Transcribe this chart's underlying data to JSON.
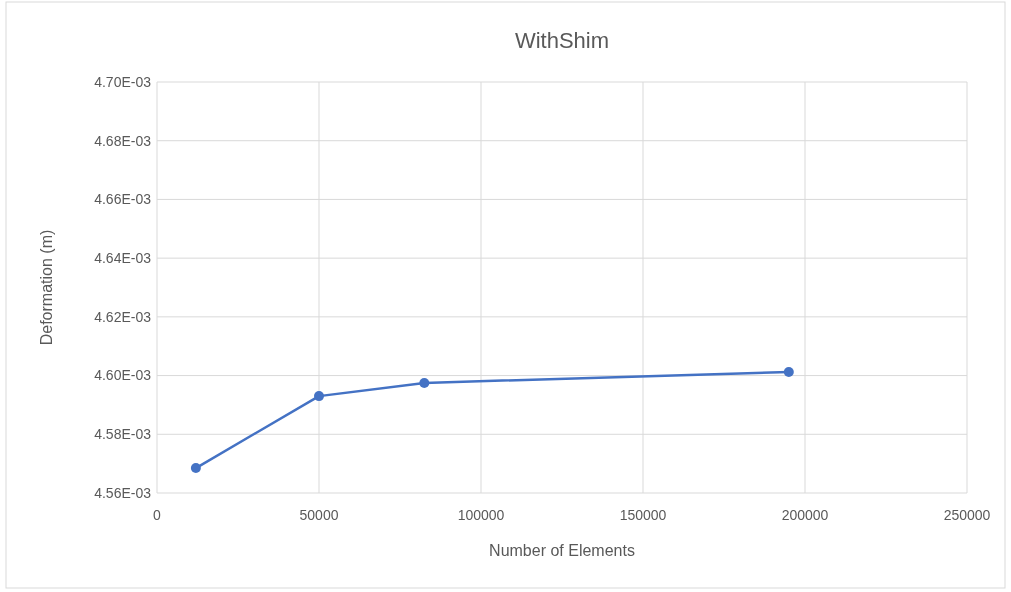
{
  "chart_data": {
    "type": "line",
    "title": "WithShim",
    "xlabel": "Number of Elements",
    "ylabel": "Deformation (m)",
    "x": [
      12000,
      50000,
      82500,
      195000
    ],
    "series": [
      {
        "color": "#4472c4",
        "values": [
          0.0045685,
          0.004593,
          0.0045975,
          0.0046012
        ]
      }
    ],
    "xlim": [
      0,
      250000
    ],
    "xticks": [
      0,
      50000,
      100000,
      150000,
      200000,
      250000
    ],
    "ylim": [
      0.00456,
      0.0047
    ],
    "yticks": [
      {
        "value": 0.00456,
        "label": "4.56E-03"
      },
      {
        "value": 0.00458,
        "label": "4.58E-03"
      },
      {
        "value": 0.0046,
        "label": "4.60E-03"
      },
      {
        "value": 0.00462,
        "label": "4.62E-03"
      },
      {
        "value": 0.00464,
        "label": "4.64E-03"
      },
      {
        "value": 0.00466,
        "label": "4.66E-03"
      },
      {
        "value": 0.00468,
        "label": "4.68E-03"
      },
      {
        "value": 0.0047,
        "label": "4.70E-03"
      }
    ],
    "grid": true,
    "marker": "circle",
    "line_style": "solid"
  }
}
